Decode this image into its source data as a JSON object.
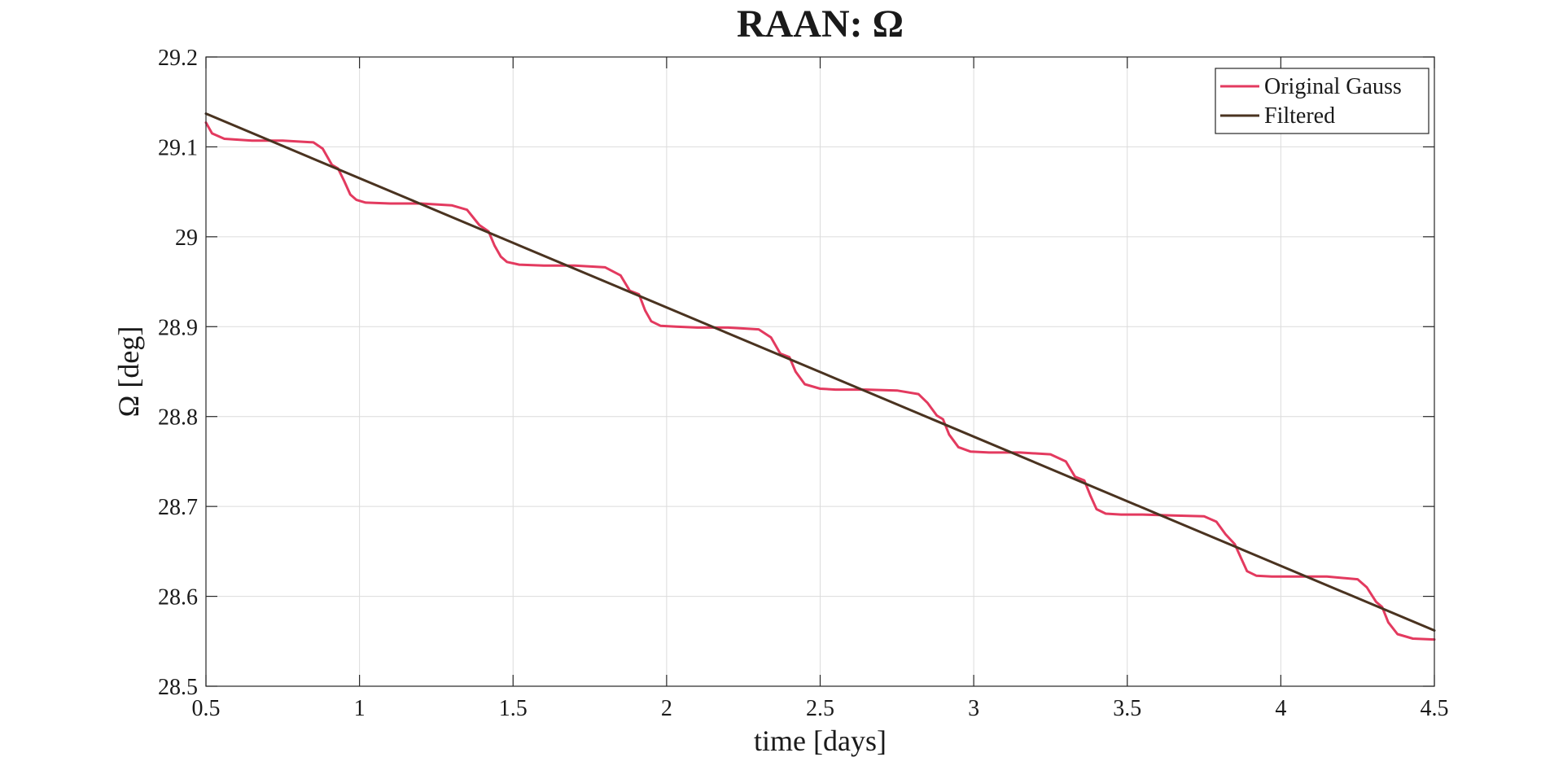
{
  "chart_data": {
    "type": "line",
    "title": "RAAN:  Ω",
    "xlabel": "time [days]",
    "ylabel": "Ω [deg]",
    "xlim": [
      0.5,
      4.5
    ],
    "ylim": [
      28.5,
      29.2
    ],
    "xticks": [
      0.5,
      1,
      1.5,
      2,
      2.5,
      3,
      3.5,
      4,
      4.5
    ],
    "xtick_labels": [
      "0.5",
      "1",
      "1.5",
      "2",
      "2.5",
      "3",
      "3.5",
      "4",
      "4.5"
    ],
    "yticks": [
      28.5,
      28.6,
      28.7,
      28.8,
      28.9,
      29.0,
      29.1,
      29.2
    ],
    "ytick_labels": [
      "28.5",
      "28.6",
      "28.7",
      "28.8",
      "28.9",
      "29",
      "29.1",
      "29.2"
    ],
    "grid": true,
    "legend_location": "top-right",
    "series": [
      {
        "name": "Original Gauss",
        "color": "#e33a5f",
        "x": [
          0.5,
          0.52,
          0.56,
          0.65,
          0.75,
          0.85,
          0.88,
          0.91,
          0.93,
          0.95,
          0.97,
          0.99,
          1.02,
          1.1,
          1.2,
          1.3,
          1.35,
          1.39,
          1.42,
          1.44,
          1.46,
          1.48,
          1.52,
          1.6,
          1.7,
          1.8,
          1.85,
          1.88,
          1.91,
          1.93,
          1.95,
          1.98,
          2.03,
          2.1,
          2.2,
          2.3,
          2.34,
          2.37,
          2.4,
          2.42,
          2.45,
          2.5,
          2.55,
          2.65,
          2.75,
          2.82,
          2.85,
          2.88,
          2.9,
          2.92,
          2.95,
          2.99,
          3.05,
          3.15,
          3.25,
          3.3,
          3.33,
          3.36,
          3.38,
          3.4,
          3.43,
          3.48,
          3.55,
          3.65,
          3.75,
          3.79,
          3.82,
          3.85,
          3.87,
          3.89,
          3.92,
          3.97,
          4.05,
          4.15,
          4.25,
          4.28,
          4.31,
          4.33,
          4.35,
          4.38,
          4.43,
          4.5
        ],
        "values": [
          29.127,
          29.115,
          29.109,
          29.107,
          29.107,
          29.105,
          29.098,
          29.08,
          29.076,
          29.062,
          29.047,
          29.041,
          29.038,
          29.037,
          29.037,
          29.035,
          29.03,
          29.013,
          29.006,
          28.99,
          28.978,
          28.972,
          28.969,
          28.968,
          28.968,
          28.966,
          28.957,
          28.94,
          28.936,
          28.918,
          28.906,
          28.901,
          28.9,
          28.899,
          28.899,
          28.897,
          28.888,
          28.87,
          28.866,
          28.85,
          28.836,
          28.831,
          28.83,
          28.83,
          28.829,
          28.825,
          28.815,
          28.801,
          28.797,
          28.78,
          28.766,
          28.761,
          28.76,
          28.76,
          28.758,
          28.75,
          28.733,
          28.729,
          28.712,
          28.697,
          28.692,
          28.691,
          28.691,
          28.69,
          28.689,
          28.683,
          28.669,
          28.658,
          28.643,
          28.628,
          28.623,
          28.622,
          28.622,
          28.622,
          28.619,
          28.61,
          28.594,
          28.588,
          28.571,
          28.558,
          28.553,
          28.552
        ]
      },
      {
        "name": "Filtered",
        "color": "#4a3320",
        "x": [
          0.5,
          4.5
        ],
        "values": [
          29.137,
          28.562
        ]
      }
    ]
  }
}
